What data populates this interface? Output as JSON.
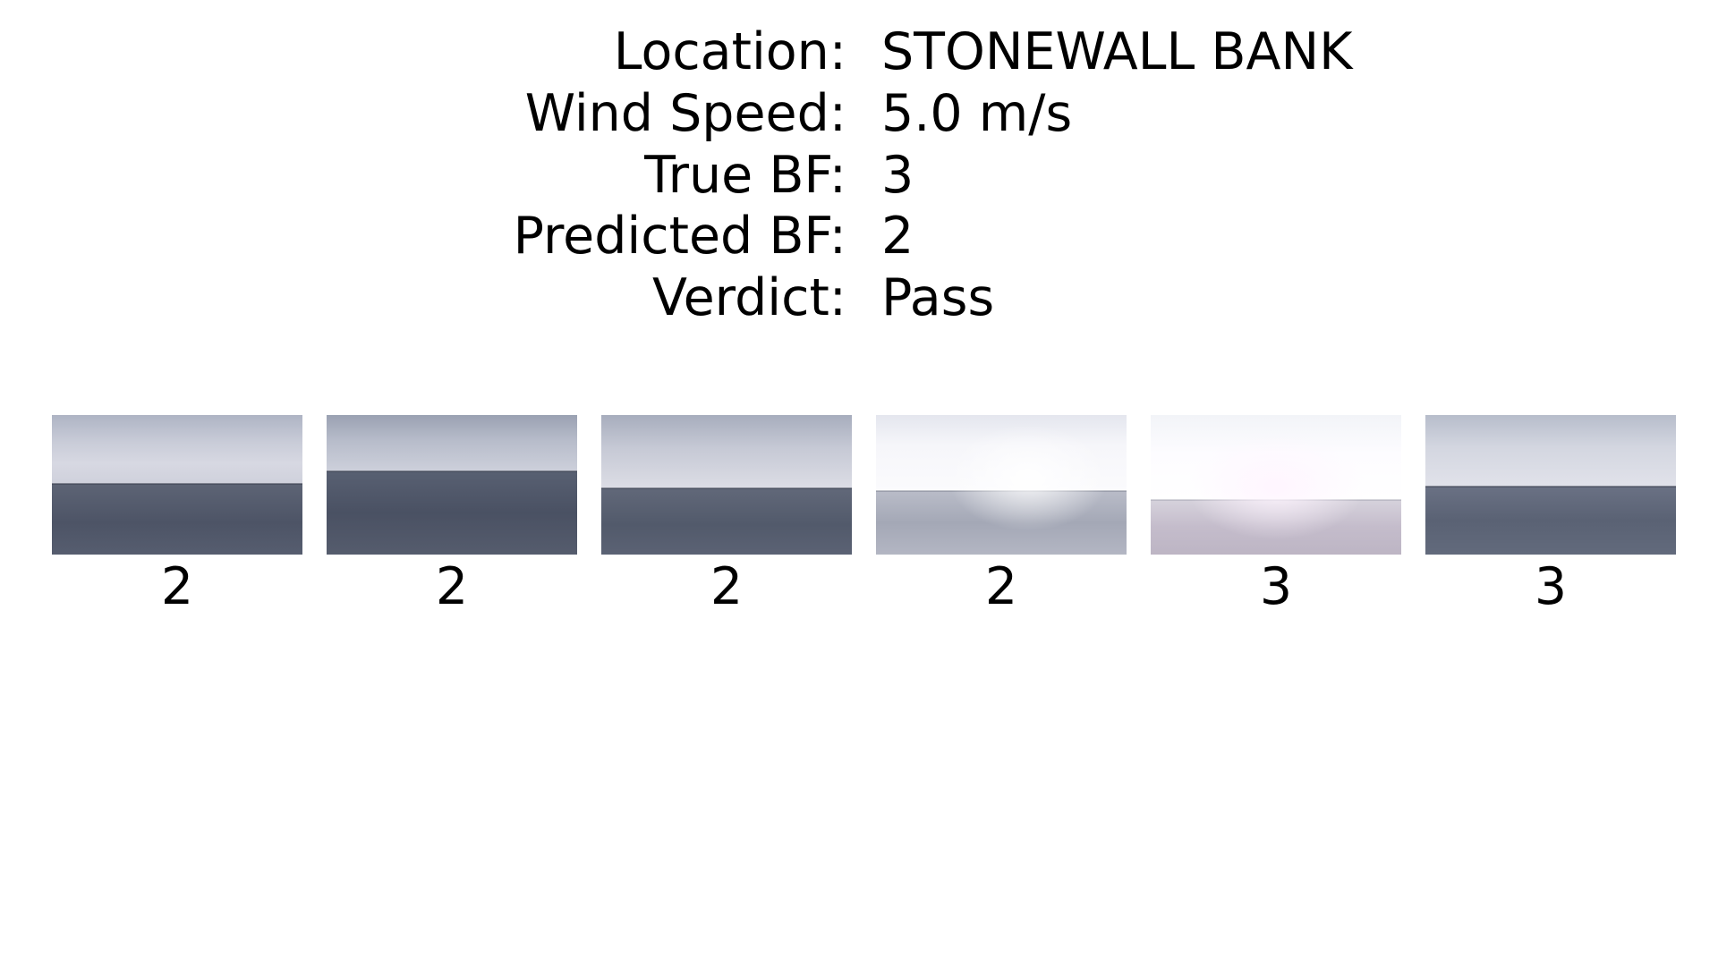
{
  "info": [
    {
      "label": "Location:",
      "value": "STONEWALL BANK"
    },
    {
      "label": "Wind Speed:",
      "value": "5.0 m/s"
    },
    {
      "label": "True BF:",
      "value": "3"
    },
    {
      "label": "Predicted BF:",
      "value": "2"
    },
    {
      "label": "Verdict:",
      "value": "Pass"
    }
  ],
  "frames": [
    {
      "label": "2",
      "icon": "sea-horizon-photo"
    },
    {
      "label": "2",
      "icon": "sea-horizon-photo"
    },
    {
      "label": "2",
      "icon": "sea-horizon-photo"
    },
    {
      "label": "2",
      "icon": "sea-horizon-photo"
    },
    {
      "label": "3",
      "icon": "sea-horizon-photo"
    },
    {
      "label": "3",
      "icon": "sea-horizon-photo"
    }
  ]
}
